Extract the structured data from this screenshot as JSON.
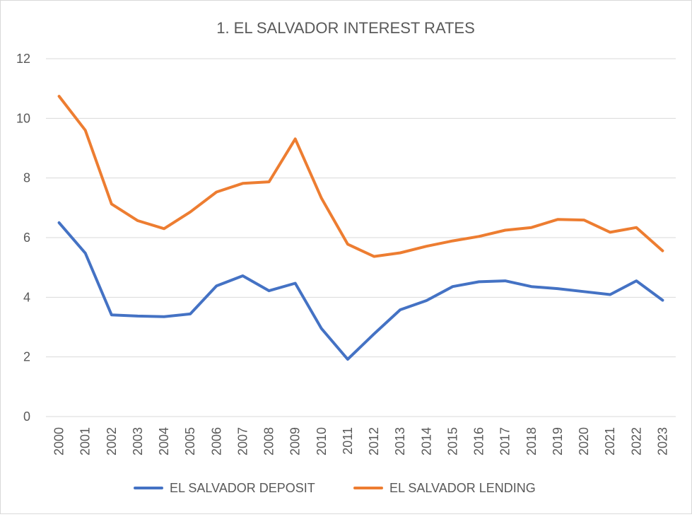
{
  "chart_data": {
    "type": "line",
    "title": "1. EL SALVADOR INTEREST RATES",
    "xlabel": "",
    "ylabel": "",
    "categories": [
      "2000",
      "2001",
      "2002",
      "2003",
      "2004",
      "2005",
      "2006",
      "2007",
      "2008",
      "2009",
      "2010",
      "2011",
      "2012",
      "2013",
      "2014",
      "2015",
      "2016",
      "2017",
      "2018",
      "2019",
      "2020",
      "2021",
      "2022",
      "2023"
    ],
    "ylim": [
      0,
      12
    ],
    "yticks": [
      "0",
      "2",
      "4",
      "6",
      "8",
      "10",
      "12"
    ],
    "grid": true,
    "legend_position": "bottom",
    "series": [
      {
        "name": "EL SALVADOR DEPOSIT",
        "color": "#4472C4",
        "values": [
          6.5,
          5.48,
          3.41,
          3.37,
          3.35,
          3.44,
          4.38,
          4.72,
          4.22,
          4.47,
          2.95,
          1.92,
          2.77,
          3.58,
          3.89,
          4.36,
          4.52,
          4.55,
          4.36,
          4.29,
          4.19,
          4.09,
          4.55,
          3.9
        ]
      },
      {
        "name": "EL SALVADOR LENDING",
        "color": "#ED7D31",
        "values": [
          10.74,
          9.6,
          7.13,
          6.57,
          6.3,
          6.86,
          7.53,
          7.82,
          7.87,
          9.31,
          7.32,
          5.78,
          5.37,
          5.49,
          5.71,
          5.89,
          6.04,
          6.25,
          6.34,
          6.61,
          6.59,
          6.18,
          6.34,
          5.56
        ]
      }
    ]
  }
}
